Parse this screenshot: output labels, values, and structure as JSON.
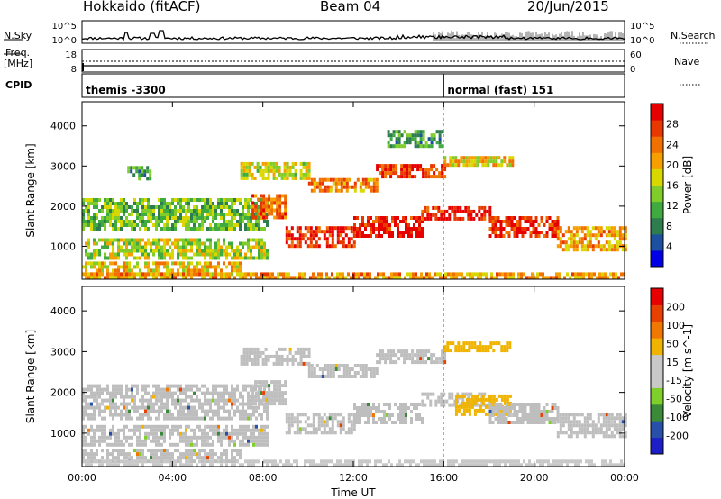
{
  "header": {
    "station": "Hokkaido (fitACF)",
    "beam": "Beam 04",
    "date": "20/Jun/2015"
  },
  "noise_panel": {
    "left_label": "N.Sky",
    "right_label": "N.Search",
    "left_ticks": [
      "10^5",
      "10^0"
    ],
    "right_ticks": [
      "10^5",
      "10^0"
    ]
  },
  "freq_panel": {
    "left_label": "Freq.",
    "left_unit": "[MHz]",
    "right_label": "Nave",
    "left_ticks": [
      "18",
      "8"
    ],
    "right_ticks": [
      "60",
      "0"
    ]
  },
  "cpid": {
    "label": "CPID",
    "segments": [
      {
        "text": "themis -3300",
        "start_hour": 0
      },
      {
        "text": "normal (fast) 151",
        "start_hour": 16
      }
    ]
  },
  "colors": {
    "power_scale": [
      "#0000e6",
      "#1e50a0",
      "#2e7d4f",
      "#3faa3f",
      "#7fcc2a",
      "#d8d800",
      "#f5a000",
      "#f07000",
      "#e83800",
      "#e60000"
    ],
    "velocity_scale": [
      "#1e1ec8",
      "#2850a8",
      "#3a8a3a",
      "#7fd02a",
      "#c8c8c8",
      "#c8c8c8",
      "#f0b400",
      "#f07800",
      "#e84000",
      "#e60000"
    ],
    "ground_scatter": "#bebebe"
  },
  "chart_data": [
    {
      "type": "heatmap",
      "title": "",
      "xlabel": "Time UT",
      "ylabel": "Slant Range [km]",
      "x_ticks": [
        "00:00",
        "04:00",
        "08:00",
        "12:00",
        "16:00",
        "20:00",
        "00:00"
      ],
      "xlim_hours": [
        0,
        24
      ],
      "y_ticks": [
        "1000",
        "2000",
        "3000",
        "4000"
      ],
      "ylim": [
        180,
        4600
      ],
      "colorbar": {
        "label": "Power [dB]",
        "ticks": [
          "28",
          "24",
          "20",
          "16",
          "12",
          "8",
          "4"
        ],
        "range": [
          0,
          30
        ]
      },
      "echo_bands": [
        {
          "t": [
            0.0,
            8.2
          ],
          "r": [
            700,
            1200
          ],
          "value": 15
        },
        {
          "t": [
            0.0,
            8.2
          ],
          "r": [
            1400,
            2200
          ],
          "value": 12
        },
        {
          "t": [
            0.0,
            7.0
          ],
          "r": [
            350,
            620
          ],
          "value": 18
        },
        {
          "t": [
            2.0,
            3.0
          ],
          "r": [
            2700,
            3000
          ],
          "value": 10
        },
        {
          "t": [
            7.5,
            9.0
          ],
          "r": [
            1700,
            2300
          ],
          "value": 24
        },
        {
          "t": [
            9.0,
            12.0
          ],
          "r": [
            1000,
            1500
          ],
          "value": 27
        },
        {
          "t": [
            12.0,
            15.0
          ],
          "r": [
            1300,
            1750
          ],
          "value": 28
        },
        {
          "t": [
            15.0,
            18.0
          ],
          "r": [
            1650,
            2000
          ],
          "value": 28
        },
        {
          "t": [
            18.0,
            21.0
          ],
          "r": [
            1300,
            1750
          ],
          "value": 27
        },
        {
          "t": [
            21.0,
            24.0
          ],
          "r": [
            900,
            1500
          ],
          "value": 20
        },
        {
          "t": [
            7.0,
            10.0
          ],
          "r": [
            2700,
            3100
          ],
          "value": 16
        },
        {
          "t": [
            10.0,
            13.0
          ],
          "r": [
            2350,
            2700
          ],
          "value": 22
        },
        {
          "t": [
            13.0,
            16.0
          ],
          "r": [
            2700,
            3050
          ],
          "value": 26
        },
        {
          "t": [
            16.0,
            19.0
          ],
          "r": [
            3000,
            3250
          ],
          "value": 18
        },
        {
          "t": [
            13.5,
            16.0
          ],
          "r": [
            3500,
            3900
          ],
          "value": 10
        },
        {
          "t": [
            0.0,
            24.0
          ],
          "r": [
            200,
            350
          ],
          "value": 20
        }
      ]
    },
    {
      "type": "heatmap",
      "title": "",
      "xlabel": "Time UT",
      "ylabel": "Slant Range [km]",
      "x_ticks": [
        "00:00",
        "04:00",
        "08:00",
        "12:00",
        "16:00",
        "20:00",
        "00:00"
      ],
      "xlim_hours": [
        0,
        24
      ],
      "y_ticks": [
        "1000",
        "2000",
        "3000",
        "4000"
      ],
      "ylim": [
        180,
        4600
      ],
      "colorbar": {
        "label": "Velocity [m s^-1]",
        "ticks": [
          "200",
          "100",
          "50",
          "15",
          "-15",
          "-50",
          "-100",
          "-200"
        ],
        "range": [
          -250,
          250
        ]
      },
      "echo_bands": [
        {
          "t": [
            0.0,
            8.2
          ],
          "r": [
            700,
            1200
          ],
          "value": 0
        },
        {
          "t": [
            0.0,
            8.2
          ],
          "r": [
            1400,
            2200
          ],
          "value": 0
        },
        {
          "t": [
            0.0,
            7.0
          ],
          "r": [
            350,
            620
          ],
          "value": 0
        },
        {
          "t": [
            7.5,
            9.0
          ],
          "r": [
            1700,
            2300
          ],
          "value": 0
        },
        {
          "t": [
            9.0,
            12.0
          ],
          "r": [
            1000,
            1500
          ],
          "value": 0
        },
        {
          "t": [
            12.0,
            15.0
          ],
          "r": [
            1300,
            1750
          ],
          "value": 0
        },
        {
          "t": [
            15.0,
            18.0
          ],
          "r": [
            1650,
            2000
          ],
          "value": 0
        },
        {
          "t": [
            16.5,
            19.0
          ],
          "r": [
            1500,
            1950
          ],
          "value": 60
        },
        {
          "t": [
            18.0,
            21.0
          ],
          "r": [
            1300,
            1750
          ],
          "value": 0
        },
        {
          "t": [
            21.0,
            24.0
          ],
          "r": [
            900,
            1500
          ],
          "value": 0
        },
        {
          "t": [
            7.0,
            10.0
          ],
          "r": [
            2700,
            3100
          ],
          "value": 0
        },
        {
          "t": [
            10.0,
            13.0
          ],
          "r": [
            2350,
            2700
          ],
          "value": 0
        },
        {
          "t": [
            13.0,
            16.0
          ],
          "r": [
            2700,
            3050
          ],
          "value": 0
        },
        {
          "t": [
            16.0,
            19.0
          ],
          "r": [
            3000,
            3250
          ],
          "value": 60
        },
        {
          "t": [
            0.0,
            24.0
          ],
          "r": [
            200,
            350
          ],
          "value": -30
        }
      ]
    }
  ]
}
